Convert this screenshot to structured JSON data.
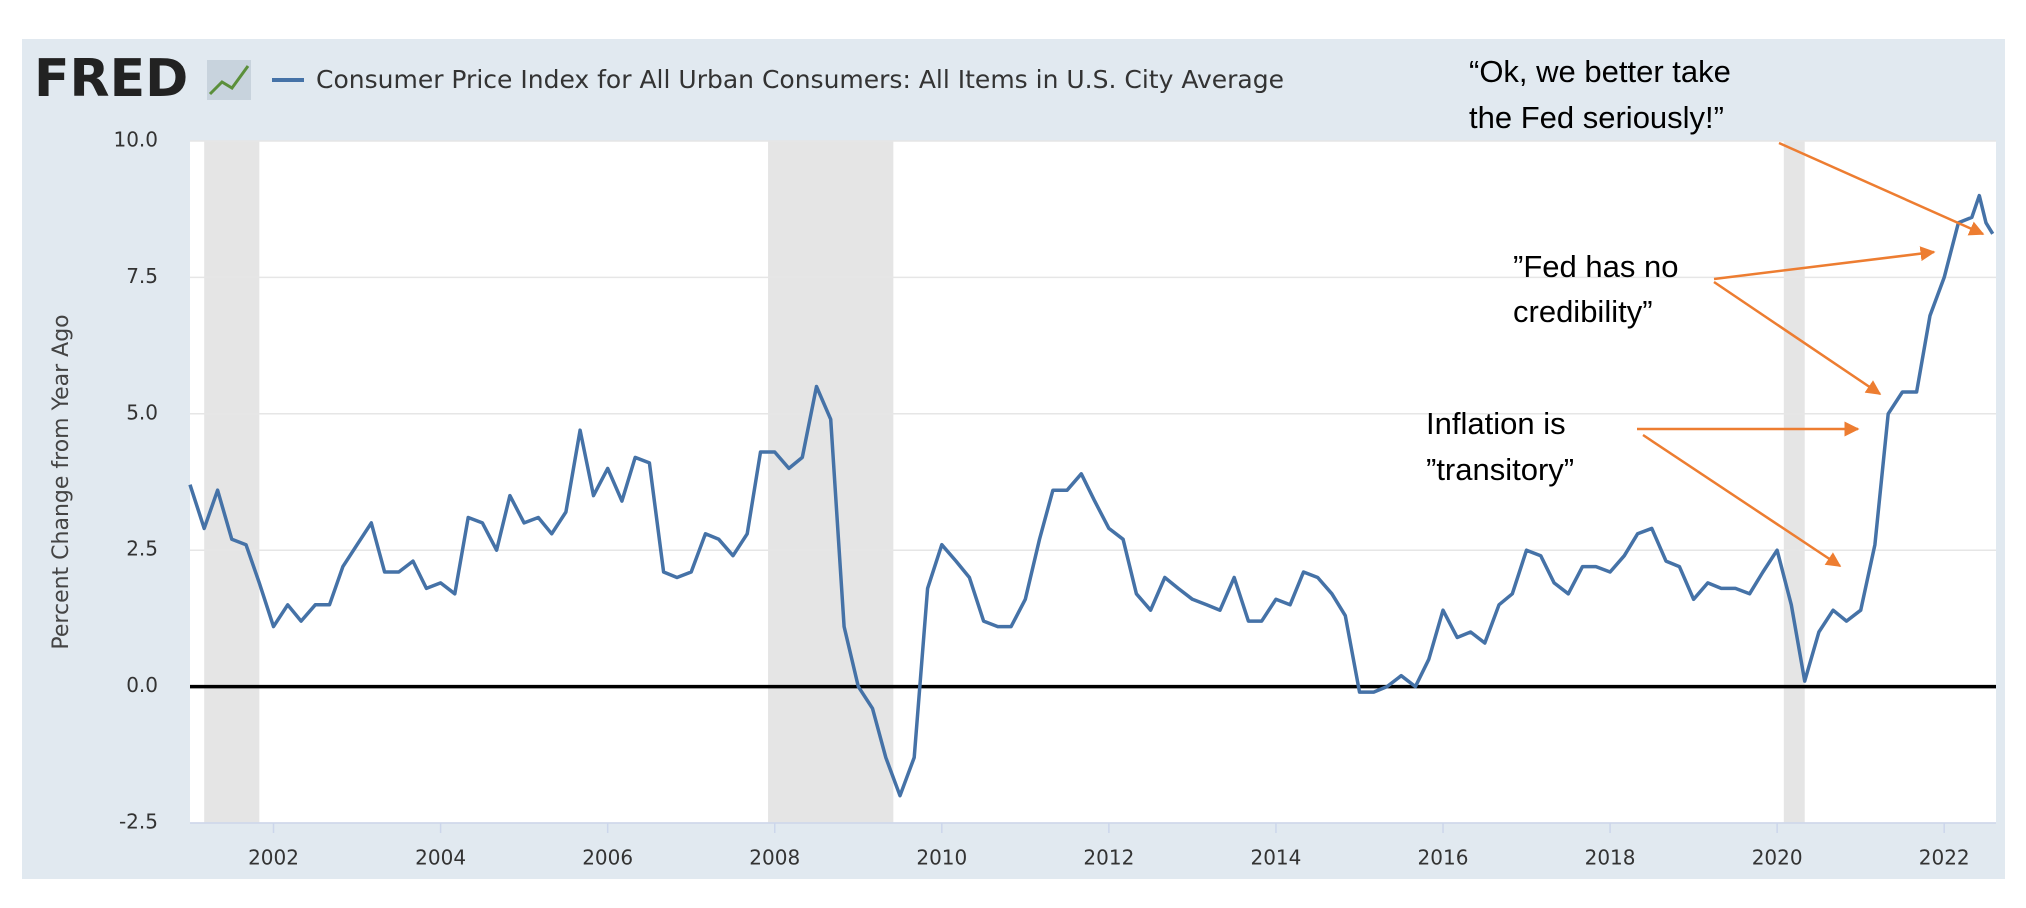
{
  "chart_data": {
    "type": "line",
    "logo": "FRED",
    "title": "Consumer Price Index for All Urban Consumers: All Items in U.S. City Average",
    "y_label": "Percent Change from Year Ago",
    "annotations": [
      {
        "lines": [
          "“Ok, we better take",
          "the Fed seriously!”"
        ]
      },
      {
        "lines": [
          "”Fed has no",
          "credibility”"
        ]
      },
      {
        "lines": [
          "Inflation is",
          "”transitory”"
        ]
      }
    ],
    "recessions": [
      [
        2001.17,
        2001.83
      ],
      [
        2007.92,
        2009.42
      ],
      [
        2020.08,
        2020.33
      ]
    ],
    "xlim": [
      2001.0,
      2022.62
    ],
    "xticks": [
      2002,
      2004,
      2006,
      2008,
      2010,
      2012,
      2014,
      2016,
      2018,
      2020,
      2022
    ],
    "ylim": [
      -2.5,
      10
    ],
    "yticks": [
      -2.5,
      {
        "value": 0,
        "label": "0.0"
      },
      2.5,
      {
        "value": 5,
        "label": "5.0"
      },
      7.5,
      {
        "value": 10,
        "label": "10.0"
      }
    ],
    "grid": true,
    "x": [
      2001.0,
      2001.17,
      2001.33,
      2001.5,
      2001.67,
      2001.83,
      2002.0,
      2002.17,
      2002.33,
      2002.5,
      2002.67,
      2002.83,
      2003.0,
      2003.17,
      2003.33,
      2003.5,
      2003.67,
      2003.83,
      2004.0,
      2004.17,
      2004.33,
      2004.5,
      2004.67,
      2004.83,
      2005.0,
      2005.17,
      2005.33,
      2005.5,
      2005.67,
      2005.83,
      2006.0,
      2006.17,
      2006.33,
      2006.5,
      2006.67,
      2006.83,
      2007.0,
      2007.17,
      2007.33,
      2007.5,
      2007.67,
      2007.83,
      2008.0,
      2008.17,
      2008.33,
      2008.5,
      2008.67,
      2008.83,
      2009.0,
      2009.17,
      2009.33,
      2009.5,
      2009.67,
      2009.83,
      2010.0,
      2010.17,
      2010.33,
      2010.5,
      2010.67,
      2010.83,
      2011.0,
      2011.17,
      2011.33,
      2011.5,
      2011.67,
      2011.83,
      2012.0,
      2012.17,
      2012.33,
      2012.5,
      2012.67,
      2012.83,
      2013.0,
      2013.17,
      2013.33,
      2013.5,
      2013.67,
      2013.83,
      2014.0,
      2014.17,
      2014.33,
      2014.5,
      2014.67,
      2014.83,
      2015.0,
      2015.17,
      2015.33,
      2015.5,
      2015.67,
      2015.83,
      2016.0,
      2016.17,
      2016.33,
      2016.5,
      2016.67,
      2016.83,
      2017.0,
      2017.17,
      2017.33,
      2017.5,
      2017.67,
      2017.83,
      2018.0,
      2018.17,
      2018.33,
      2018.5,
      2018.67,
      2018.83,
      2019.0,
      2019.17,
      2019.33,
      2019.5,
      2019.67,
      2019.83,
      2020.0,
      2020.17,
      2020.33,
      2020.5,
      2020.67,
      2020.83,
      2021.0,
      2021.17,
      2021.33,
      2021.5,
      2021.67,
      2021.83,
      2022.0,
      2022.17,
      2022.33,
      2022.42,
      2022.5,
      2022.58
    ],
    "series": [
      {
        "name": "Consumer Price Index for All Urban Consumers: All Items in U.S. City Average",
        "color": "#4572a7",
        "values": [
          3.7,
          2.9,
          3.6,
          2.7,
          2.6,
          1.9,
          1.1,
          1.5,
          1.2,
          1.5,
          1.5,
          2.2,
          2.6,
          3.0,
          2.1,
          2.1,
          2.3,
          1.8,
          1.9,
          1.7,
          3.1,
          3.0,
          2.5,
          3.5,
          3.0,
          3.1,
          2.8,
          3.2,
          4.7,
          3.5,
          4.0,
          3.4,
          4.2,
          4.1,
          2.1,
          2.0,
          2.1,
          2.8,
          2.7,
          2.4,
          2.8,
          4.3,
          4.3,
          4.0,
          4.2,
          5.5,
          4.9,
          1.1,
          0.0,
          -0.4,
          -1.3,
          -2.0,
          -1.3,
          1.8,
          2.6,
          2.3,
          2.0,
          1.2,
          1.1,
          1.1,
          1.6,
          2.7,
          3.6,
          3.6,
          3.9,
          3.4,
          2.9,
          2.7,
          1.7,
          1.4,
          2.0,
          1.8,
          1.6,
          1.5,
          1.4,
          2.0,
          1.2,
          1.2,
          1.6,
          1.5,
          2.1,
          2.0,
          1.7,
          1.3,
          -0.1,
          -0.1,
          0.0,
          0.2,
          0.0,
          0.5,
          1.4,
          0.9,
          1.0,
          0.8,
          1.5,
          1.7,
          2.5,
          2.4,
          1.9,
          1.7,
          2.2,
          2.2,
          2.1,
          2.4,
          2.8,
          2.9,
          2.3,
          2.2,
          1.6,
          1.9,
          1.8,
          1.8,
          1.7,
          2.1,
          2.5,
          1.5,
          0.1,
          1.0,
          1.4,
          1.2,
          1.4,
          2.6,
          5.0,
          5.4,
          5.4,
          6.8,
          7.5,
          8.5,
          8.6,
          9.0,
          8.5,
          8.3
        ]
      }
    ]
  }
}
